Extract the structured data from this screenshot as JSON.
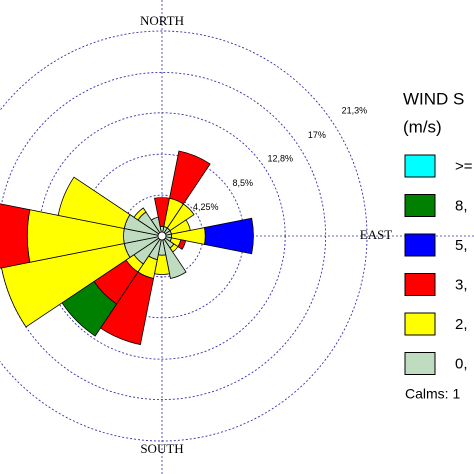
{
  "chart_data": {
    "type": "windrose",
    "categories": [
      "NORTH",
      null,
      null,
      null,
      "EAST",
      null,
      null,
      null,
      "SOUTH",
      null,
      null,
      null,
      null,
      null,
      null,
      null
    ],
    "rlim": [
      0,
      21.3
    ],
    "rticks": [
      {
        "value": 4.25,
        "label": "4,25%"
      },
      {
        "value": 8.5,
        "label": "8,5%"
      },
      {
        "value": 12.8,
        "label": "12,8%"
      },
      {
        "value": 17,
        "label": "17%"
      },
      {
        "value": 21.3,
        "label": "21,3%"
      }
    ],
    "legend_title": [
      "WIND S",
      "(m/s)"
    ],
    "calms": "Calms: 1",
    "series": [
      {
        "name": "0,",
        "color": "#c0dcc0",
        "values": [
          1,
          1,
          1,
          1,
          1,
          1,
          1.5,
          4.5,
          2,
          2.5,
          3.5,
          4,
          4,
          4,
          3,
          2
        ]
      },
      {
        "name": "2,",
        "color": "#ffff00",
        "values": [
          0,
          3,
          3,
          2,
          3.5,
          1,
          0.5,
          0,
          2,
          2,
          1,
          13,
          10,
          7,
          0.5,
          0
        ]
      },
      {
        "name": "3,",
        "color": "#ff0000",
        "values": [
          3,
          5,
          0,
          0,
          0,
          0.5,
          0,
          0,
          0,
          7,
          4,
          0,
          6,
          0,
          0,
          0
        ]
      },
      {
        "name": "5,",
        "color": "#0000ff",
        "values": [
          0,
          0,
          0,
          0,
          5,
          0,
          0,
          0,
          0,
          0,
          0,
          0,
          0,
          0,
          0,
          0
        ]
      },
      {
        "name": "8,",
        "color": "#008000",
        "values": [
          0,
          0,
          0,
          0,
          0,
          0,
          0,
          0,
          0,
          0,
          4,
          0,
          0,
          0,
          0,
          0
        ]
      },
      {
        "name": ">=",
        "color": "#00ffff",
        "values": [
          0,
          0,
          0,
          0,
          0,
          0,
          0,
          0,
          0,
          0,
          0,
          0,
          0,
          0,
          0,
          0
        ]
      }
    ]
  }
}
